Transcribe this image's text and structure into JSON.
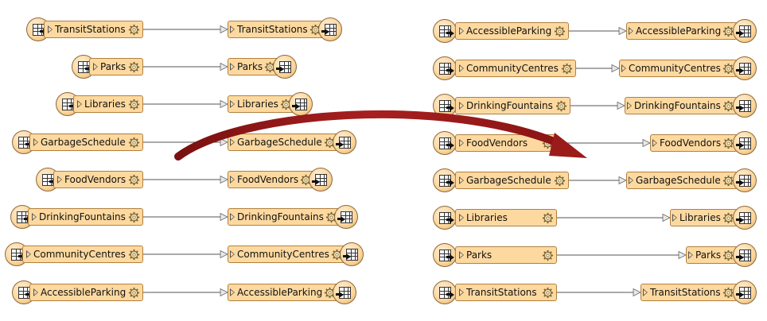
{
  "colors": {
    "node_fill": "#fdd9a0",
    "node_border": "#b08040",
    "connector": "#555555",
    "transform_arrow": "#9b1b1b"
  },
  "icons": {
    "reader_badge": "table-arrow-in-icon",
    "writer_badge": "table-arrow-out-icon",
    "port": "triangle-port-icon",
    "settings": "gear-icon"
  },
  "left_panel": {
    "connections": [
      {
        "reader": "TransitStations",
        "writer": "TransitStations"
      },
      {
        "reader": "Parks",
        "writer": "Parks"
      },
      {
        "reader": "Libraries",
        "writer": "Libraries"
      },
      {
        "reader": "GarbageSchedule",
        "writer": "GarbageSchedule"
      },
      {
        "reader": "FoodVendors",
        "writer": "FoodVendors"
      },
      {
        "reader": "DrinkingFountains",
        "writer": "DrinkingFountains"
      },
      {
        "reader": "CommunityCentres",
        "writer": "CommunityCentres"
      },
      {
        "reader": "AccessibleParking",
        "writer": "AccessibleParking"
      }
    ]
  },
  "right_panel": {
    "connections": [
      {
        "reader": "AccessibleParking",
        "writer": "AccessibleParking"
      },
      {
        "reader": "CommunityCentres",
        "writer": "CommunityCentres"
      },
      {
        "reader": "DrinkingFountains",
        "writer": "DrinkingFountains"
      },
      {
        "reader": "FoodVendors",
        "writer": "FoodVendors"
      },
      {
        "reader": "GarbageSchedule",
        "writer": "GarbageSchedule"
      },
      {
        "reader": "Libraries",
        "writer": "Libraries"
      },
      {
        "reader": "Parks",
        "writer": "Parks"
      },
      {
        "reader": "TransitStations",
        "writer": "TransitStations"
      }
    ]
  }
}
